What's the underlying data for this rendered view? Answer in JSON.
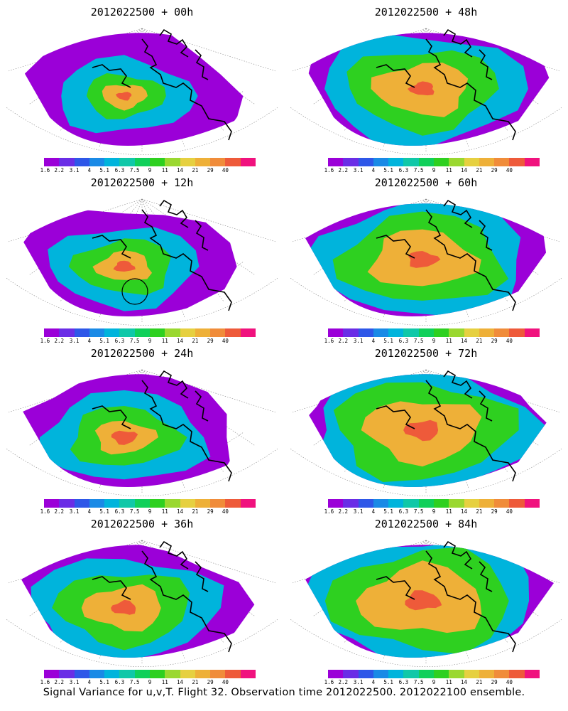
{
  "colorbar": {
    "labels": [
      "1.6",
      "2.2",
      "3.1",
      "4",
      "5.1",
      "6.3",
      "7.5",
      "9",
      "11",
      "14",
      "21",
      "29",
      "40"
    ],
    "colors": [
      "#9b00d8",
      "#6a2de6",
      "#2e57e8",
      "#1a8ae6",
      "#00b4dc",
      "#10c8a8",
      "#10d05a",
      "#2ed020",
      "#9ad830",
      "#e6d040",
      "#eeb038",
      "#f08c3a",
      "#ee5a3a",
      "#f0127e"
    ]
  },
  "panels": [
    {
      "title": "2012022500 + 00h",
      "circle": false,
      "layers": [
        0.92,
        0.55,
        0.32,
        0.18,
        0.06
      ]
    },
    {
      "title": "2012022500 + 48h",
      "circle": false,
      "layers": [
        1.0,
        0.82,
        0.6,
        0.38,
        0.1
      ]
    },
    {
      "title": "2012022500 + 12h",
      "circle": true,
      "layers": [
        0.88,
        0.6,
        0.4,
        0.22,
        0.08
      ]
    },
    {
      "title": "2012022500 + 60h",
      "circle": false,
      "layers": [
        1.02,
        0.86,
        0.66,
        0.42,
        0.12
      ]
    },
    {
      "title": "2012022500 + 24h",
      "circle": false,
      "layers": [
        0.92,
        0.66,
        0.44,
        0.24,
        0.1
      ]
    },
    {
      "title": "2012022500 + 72h",
      "circle": false,
      "layers": [
        1.04,
        0.9,
        0.72,
        0.46,
        0.14
      ]
    },
    {
      "title": "2012022500 + 36h",
      "circle": false,
      "layers": [
        0.96,
        0.76,
        0.54,
        0.32,
        0.1
      ]
    },
    {
      "title": "2012022500 + 84h",
      "circle": false,
      "layers": [
        1.06,
        0.92,
        0.74,
        0.5,
        0.14
      ]
    }
  ],
  "footer": "Signal Variance for u,v,T. Flight 32. Observation time 2012022500. 2012022100 ensemble."
}
